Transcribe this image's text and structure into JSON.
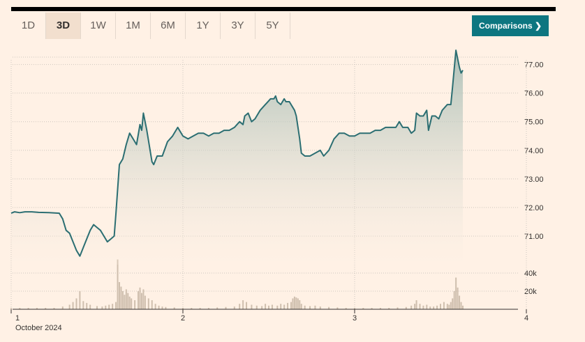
{
  "tabs": [
    {
      "label": "1D",
      "active": false
    },
    {
      "label": "3D",
      "active": true
    },
    {
      "label": "1W",
      "active": false
    },
    {
      "label": "1M",
      "active": false
    },
    {
      "label": "6M",
      "active": false
    },
    {
      "label": "1Y",
      "active": false
    },
    {
      "label": "3Y",
      "active": false
    },
    {
      "label": "5Y",
      "active": false
    }
  ],
  "comparisons_button": {
    "label": "Comparisons",
    "icon": "chevron-right-icon"
  },
  "colors": {
    "line": "#2b6e72",
    "volume": "#cfbfae",
    "button": "#0d7680",
    "background": "#fff1e5"
  },
  "chart_data": {
    "type": "line",
    "price_axis": {
      "ticks": [
        "77.00",
        "76.00",
        "75.00",
        "74.00",
        "73.00",
        "72.00",
        "71.00"
      ],
      "range": [
        70.0,
        77.6
      ]
    },
    "volume_axis": {
      "ticks": [
        "40k",
        "20k"
      ],
      "range": [
        0,
        60000
      ]
    },
    "x_axis": {
      "ticks": [
        {
          "label": "1",
          "t": 0
        },
        {
          "label": "2",
          "t": 1
        },
        {
          "label": "3",
          "t": 2
        },
        {
          "label": "4",
          "t": 3
        }
      ],
      "month_label": "October 2024",
      "range": [
        0,
        3
      ]
    },
    "price": [
      [
        0.0,
        71.8
      ],
      [
        0.02,
        71.85
      ],
      [
        0.05,
        71.82
      ],
      [
        0.08,
        71.85
      ],
      [
        0.12,
        71.85
      ],
      [
        0.16,
        71.83
      ],
      [
        0.22,
        71.82
      ],
      [
        0.28,
        71.8
      ],
      [
        0.3,
        71.6
      ],
      [
        0.32,
        71.2
      ],
      [
        0.34,
        71.1
      ],
      [
        0.36,
        70.8
      ],
      [
        0.38,
        70.5
      ],
      [
        0.4,
        70.3
      ],
      [
        0.42,
        70.6
      ],
      [
        0.44,
        70.9
      ],
      [
        0.46,
        71.2
      ],
      [
        0.48,
        71.4
      ],
      [
        0.5,
        71.3
      ],
      [
        0.52,
        71.2
      ],
      [
        0.54,
        71.0
      ],
      [
        0.56,
        70.8
      ],
      [
        0.58,
        70.9
      ],
      [
        0.6,
        71.0
      ],
      [
        0.61,
        71.8
      ],
      [
        0.63,
        73.5
      ],
      [
        0.65,
        73.7
      ],
      [
        0.67,
        74.2
      ],
      [
        0.69,
        74.6
      ],
      [
        0.71,
        74.4
      ],
      [
        0.73,
        74.2
      ],
      [
        0.75,
        74.9
      ],
      [
        0.76,
        74.7
      ],
      [
        0.77,
        75.3
      ],
      [
        0.79,
        74.7
      ],
      [
        0.82,
        73.6
      ],
      [
        0.83,
        73.5
      ],
      [
        0.85,
        73.8
      ],
      [
        0.88,
        73.8
      ],
      [
        0.91,
        74.3
      ],
      [
        0.94,
        74.5
      ],
      [
        0.97,
        74.8
      ],
      [
        1.0,
        74.5
      ],
      [
        1.03,
        74.4
      ],
      [
        1.06,
        74.5
      ],
      [
        1.09,
        74.6
      ],
      [
        1.12,
        74.6
      ],
      [
        1.15,
        74.5
      ],
      [
        1.18,
        74.6
      ],
      [
        1.21,
        74.6
      ],
      [
        1.24,
        74.7
      ],
      [
        1.27,
        74.7
      ],
      [
        1.3,
        74.8
      ],
      [
        1.33,
        75.0
      ],
      [
        1.35,
        74.9
      ],
      [
        1.36,
        75.2
      ],
      [
        1.38,
        75.3
      ],
      [
        1.4,
        75.0
      ],
      [
        1.42,
        75.1
      ],
      [
        1.45,
        75.4
      ],
      [
        1.48,
        75.6
      ],
      [
        1.51,
        75.8
      ],
      [
        1.53,
        75.8
      ],
      [
        1.54,
        75.9
      ],
      [
        1.55,
        75.7
      ],
      [
        1.57,
        75.6
      ],
      [
        1.59,
        75.8
      ],
      [
        1.6,
        75.7
      ],
      [
        1.62,
        75.7
      ],
      [
        1.65,
        75.4
      ],
      [
        1.66,
        75.2
      ],
      [
        1.68,
        74.4
      ],
      [
        1.69,
        73.9
      ],
      [
        1.71,
        73.8
      ],
      [
        1.74,
        73.8
      ],
      [
        1.77,
        73.9
      ],
      [
        1.8,
        74.0
      ],
      [
        1.82,
        73.8
      ],
      [
        1.85,
        74.0
      ],
      [
        1.88,
        74.4
      ],
      [
        1.91,
        74.6
      ],
      [
        1.94,
        74.6
      ],
      [
        1.97,
        74.5
      ],
      [
        2.0,
        74.5
      ],
      [
        2.03,
        74.6
      ],
      [
        2.06,
        74.6
      ],
      [
        2.09,
        74.6
      ],
      [
        2.12,
        74.7
      ],
      [
        2.15,
        74.7
      ],
      [
        2.18,
        74.8
      ],
      [
        2.21,
        74.8
      ],
      [
        2.24,
        74.8
      ],
      [
        2.26,
        75.0
      ],
      [
        2.28,
        74.8
      ],
      [
        2.31,
        74.8
      ],
      [
        2.33,
        74.6
      ],
      [
        2.35,
        74.7
      ],
      [
        2.36,
        75.3
      ],
      [
        2.38,
        75.2
      ],
      [
        2.4,
        75.2
      ],
      [
        2.42,
        75.4
      ],
      [
        2.43,
        74.7
      ],
      [
        2.45,
        75.2
      ],
      [
        2.47,
        75.2
      ],
      [
        2.49,
        75.1
      ],
      [
        2.51,
        75.4
      ],
      [
        2.54,
        75.6
      ],
      [
        2.56,
        75.6
      ],
      [
        2.57,
        76.2
      ],
      [
        2.59,
        77.5
      ],
      [
        2.61,
        76.9
      ],
      [
        2.62,
        76.7
      ],
      [
        2.63,
        76.8
      ]
    ],
    "volume": [
      [
        0.0,
        1500
      ],
      [
        0.05,
        1500
      ],
      [
        0.1,
        1500
      ],
      [
        0.15,
        1500
      ],
      [
        0.2,
        1500
      ],
      [
        0.25,
        1500
      ],
      [
        0.3,
        3000
      ],
      [
        0.34,
        5000
      ],
      [
        0.36,
        8000
      ],
      [
        0.38,
        12000
      ],
      [
        0.4,
        20000
      ],
      [
        0.42,
        9000
      ],
      [
        0.44,
        7000
      ],
      [
        0.46,
        5000
      ],
      [
        0.5,
        3500
      ],
      [
        0.53,
        3000
      ],
      [
        0.55,
        4000
      ],
      [
        0.57,
        5000
      ],
      [
        0.59,
        6000
      ],
      [
        0.61,
        8000
      ],
      [
        0.62,
        55000
      ],
      [
        0.63,
        30000
      ],
      [
        0.64,
        25000
      ],
      [
        0.65,
        20000
      ],
      [
        0.66,
        16000
      ],
      [
        0.67,
        22000
      ],
      [
        0.68,
        18000
      ],
      [
        0.69,
        14000
      ],
      [
        0.7,
        12000
      ],
      [
        0.72,
        10000
      ],
      [
        0.74,
        20000
      ],
      [
        0.75,
        24000
      ],
      [
        0.76,
        18000
      ],
      [
        0.77,
        22000
      ],
      [
        0.78,
        15000
      ],
      [
        0.8,
        12000
      ],
      [
        0.82,
        10000
      ],
      [
        0.84,
        6000
      ],
      [
        0.86,
        4000
      ],
      [
        0.88,
        3000
      ],
      [
        0.9,
        2500
      ],
      [
        0.95,
        2000
      ],
      [
        1.0,
        1500
      ],
      [
        1.05,
        1500
      ],
      [
        1.1,
        1500
      ],
      [
        1.15,
        1500
      ],
      [
        1.2,
        2000
      ],
      [
        1.25,
        2500
      ],
      [
        1.3,
        3000
      ],
      [
        1.33,
        6000
      ],
      [
        1.35,
        10000
      ],
      [
        1.37,
        8000
      ],
      [
        1.4,
        5000
      ],
      [
        1.43,
        4000
      ],
      [
        1.46,
        3500
      ],
      [
        1.48,
        6000
      ],
      [
        1.5,
        4000
      ],
      [
        1.52,
        5000
      ],
      [
        1.55,
        4000
      ],
      [
        1.57,
        6000
      ],
      [
        1.59,
        5000
      ],
      [
        1.61,
        7000
      ],
      [
        1.63,
        8000
      ],
      [
        1.64,
        12000
      ],
      [
        1.65,
        14000
      ],
      [
        1.66,
        13000
      ],
      [
        1.67,
        12000
      ],
      [
        1.68,
        10000
      ],
      [
        1.69,
        6000
      ],
      [
        1.71,
        4000
      ],
      [
        1.74,
        3500
      ],
      [
        1.77,
        4000
      ],
      [
        1.8,
        3000
      ],
      [
        1.85,
        2500
      ],
      [
        1.9,
        2000
      ],
      [
        1.95,
        1500
      ],
      [
        2.0,
        1500
      ],
      [
        2.05,
        1500
      ],
      [
        2.1,
        1500
      ],
      [
        2.15,
        1500
      ],
      [
        2.2,
        1500
      ],
      [
        2.25,
        2000
      ],
      [
        2.3,
        2500
      ],
      [
        2.33,
        4000
      ],
      [
        2.35,
        6000
      ],
      [
        2.36,
        10000
      ],
      [
        2.38,
        6000
      ],
      [
        2.4,
        4000
      ],
      [
        2.42,
        5000
      ],
      [
        2.44,
        3000
      ],
      [
        2.46,
        3000
      ],
      [
        2.48,
        4000
      ],
      [
        2.5,
        6000
      ],
      [
        2.52,
        8000
      ],
      [
        2.54,
        6000
      ],
      [
        2.55,
        5000
      ],
      [
        2.56,
        8000
      ],
      [
        2.57,
        12000
      ],
      [
        2.58,
        20000
      ],
      [
        2.59,
        35000
      ],
      [
        2.6,
        24000
      ],
      [
        2.61,
        15000
      ],
      [
        2.62,
        8000
      ],
      [
        2.63,
        4000
      ]
    ]
  }
}
